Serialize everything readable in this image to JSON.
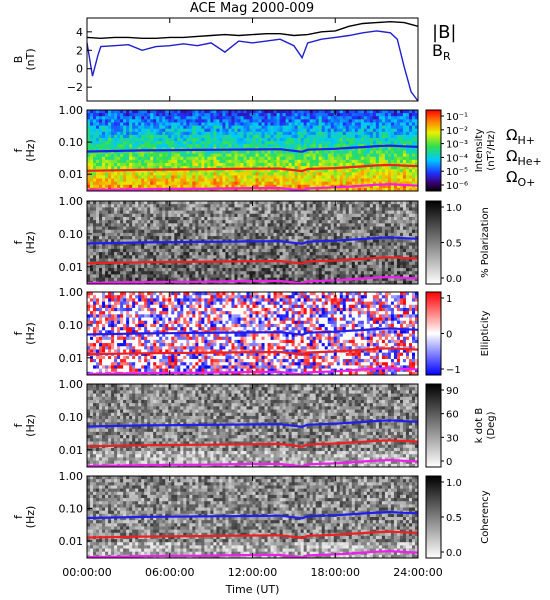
{
  "chart_data": {
    "type": "heatmap",
    "title": "ACE Mag 2000-009",
    "xlabel": "Time (UT)",
    "xticks": [
      "00:00:00",
      "06:00:00",
      "12:00:00",
      "18:00:00",
      "24:00:00"
    ],
    "xrange_hours": [
      0,
      24
    ],
    "panels": [
      {
        "id": "field",
        "type": "line",
        "ylabel": [
          "B",
          "(nT)"
        ],
        "yticks": [
          4,
          2,
          0,
          -2
        ],
        "ylim": [
          -3.5,
          5.5
        ],
        "legend": [
          "|B|",
          "B_R"
        ],
        "series": [
          {
            "name": "|B|",
            "color": "#000000",
            "x": [
              0,
              1,
              2,
              3,
              4,
              5,
              6,
              7,
              8,
              9,
              10,
              11,
              12,
              13,
              14,
              15,
              16,
              17,
              18,
              19,
              20,
              21,
              22,
              23,
              24
            ],
            "y": [
              3.4,
              3.3,
              3.4,
              3.4,
              3.3,
              3.3,
              3.4,
              3.4,
              3.5,
              3.6,
              3.7,
              3.6,
              3.7,
              3.8,
              3.8,
              3.6,
              3.7,
              4.0,
              4.1,
              4.6,
              4.9,
              5.0,
              5.1,
              5.0,
              4.6
            ]
          },
          {
            "name": "B_R",
            "color": "#2020d0",
            "x": [
              0,
              0.4,
              0.8,
              1,
              2,
              3,
              4,
              5,
              6,
              7,
              8,
              9,
              10,
              11,
              12,
              13,
              14,
              15,
              15.6,
              16,
              17,
              18,
              19,
              20,
              21,
              22,
              22.5,
              23,
              23.5,
              24
            ],
            "y": [
              2.8,
              -0.8,
              1.5,
              2.4,
              2.5,
              2.6,
              2.0,
              2.4,
              2.5,
              2.7,
              2.5,
              2.8,
              1.8,
              3.0,
              2.8,
              3.0,
              3.2,
              2.5,
              1.2,
              2.8,
              3.2,
              3.4,
              3.6,
              3.9,
              4.1,
              3.9,
              3.2,
              0.2,
              -2.5,
              -3.5
            ]
          }
        ]
      },
      {
        "id": "intensity",
        "type": "heatmap",
        "ylabel": [
          "f",
          "(Hz)"
        ],
        "yticks": [
          "1.00",
          "0.10",
          "0.01"
        ],
        "ylim": [
          0.003,
          1.0
        ],
        "yscale": "log",
        "colorbar": {
          "label": [
            "Intensity",
            "(nT²/Hz)"
          ],
          "ticks": [
            "10⁻¹",
            "10⁻²",
            "10⁻³",
            "10⁻⁴",
            "10⁻⁵",
            "10⁻⁶"
          ],
          "scale": "rainbow"
        }
      },
      {
        "id": "polarization",
        "type": "heatmap",
        "ylabel": [
          "f",
          "(Hz)"
        ],
        "yticks": [
          "1.00",
          "0.10",
          "0.01"
        ],
        "ylim": [
          0.003,
          1.0
        ],
        "yscale": "log",
        "colorbar": {
          "label": [
            "% Polarization"
          ],
          "ticks": [
            "1.0",
            "0.5",
            "0.0"
          ],
          "scale": "gray"
        }
      },
      {
        "id": "ellipticity",
        "type": "heatmap",
        "ylabel": [
          "f",
          "(Hz)"
        ],
        "yticks": [
          "1.00",
          "0.10",
          "0.01"
        ],
        "ylim": [
          0.003,
          1.0
        ],
        "yscale": "log",
        "colorbar": {
          "label": [
            "Ellipticity"
          ],
          "ticks": [
            "1",
            "0",
            "−1"
          ],
          "scale": "bluewhitered"
        }
      },
      {
        "id": "kdotb",
        "type": "heatmap",
        "ylabel": [
          "f",
          "(Hz)"
        ],
        "yticks": [
          "1.00",
          "0.10",
          "0.01"
        ],
        "ylim": [
          0.003,
          1.0
        ],
        "yscale": "log",
        "colorbar": {
          "label": [
            "k dot B",
            "(Deg)"
          ],
          "ticks": [
            "90",
            "60",
            "30",
            "0"
          ],
          "scale": "gray"
        }
      },
      {
        "id": "coherency",
        "type": "heatmap",
        "ylabel": [
          "f",
          "(Hz)"
        ],
        "yticks": [
          "1.00",
          "0.10",
          "0.01"
        ],
        "ylim": [
          0.003,
          1.0
        ],
        "yscale": "log",
        "colorbar": {
          "label": [
            "Coherency"
          ],
          "ticks": [
            "1.0",
            "0.5",
            "0.0"
          ],
          "scale": "gray"
        }
      }
    ],
    "gyrofrequency_legend": [
      {
        "label": "ΩH+",
        "color": "#2020ee"
      },
      {
        "label": "ΩHe+",
        "color": "#ee2020"
      },
      {
        "label": "ΩO+",
        "color": "#ee20ee"
      }
    ],
    "gyrofrequency_series": [
      {
        "name": "ΩH+",
        "color": "#2020ee",
        "x": [
          0,
          2,
          4,
          6,
          8,
          10,
          12,
          14,
          15.6,
          16,
          18,
          19,
          20,
          21,
          22,
          23,
          24
        ],
        "y": [
          0.051,
          0.053,
          0.055,
          0.056,
          0.057,
          0.058,
          0.059,
          0.06,
          0.05,
          0.058,
          0.062,
          0.066,
          0.07,
          0.075,
          0.078,
          0.074,
          0.071
        ]
      },
      {
        "name": "ΩHe+",
        "color": "#ee2020",
        "x": [
          0,
          2,
          4,
          6,
          8,
          10,
          12,
          14,
          15.6,
          16,
          18,
          19,
          20,
          21,
          22,
          23,
          24
        ],
        "y": [
          0.0128,
          0.0132,
          0.0137,
          0.014,
          0.0142,
          0.0145,
          0.0148,
          0.015,
          0.0125,
          0.0145,
          0.0155,
          0.0165,
          0.0175,
          0.0188,
          0.0195,
          0.0185,
          0.0178
        ]
      },
      {
        "name": "ΩO+",
        "color": "#ee20ee",
        "x": [
          0,
          2,
          4,
          6,
          8,
          10,
          12,
          14,
          15.6,
          16,
          18,
          19,
          20,
          21,
          22,
          23,
          24
        ],
        "y": [
          0.0032,
          0.0033,
          0.0034,
          0.0035,
          0.0035,
          0.0036,
          0.0037,
          0.0037,
          0.0031,
          0.0036,
          0.0039,
          0.0041,
          0.0044,
          0.0047,
          0.0049,
          0.0046,
          0.0044
        ]
      }
    ]
  }
}
